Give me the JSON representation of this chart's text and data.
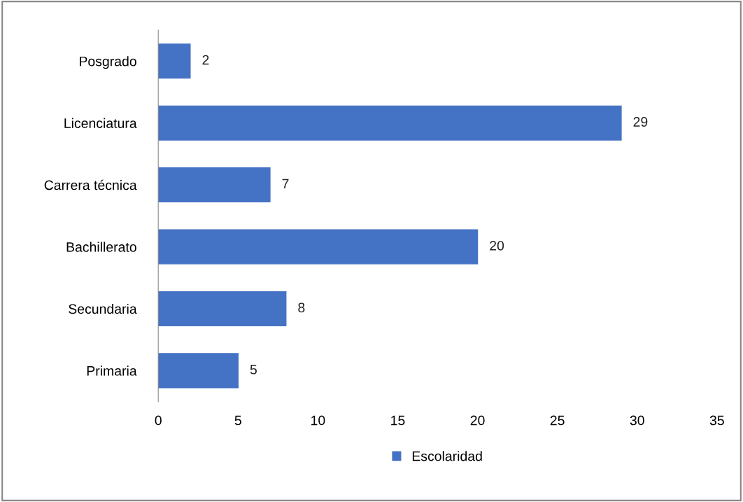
{
  "chart_data": {
    "type": "bar",
    "orientation": "horizontal",
    "categories": [
      "Posgrado",
      "Licenciatura",
      "Carrera técnica",
      "Bachillerato",
      "Secundaria",
      "Primaria"
    ],
    "series": [
      {
        "name": "Escolaridad",
        "color": "#4472c4",
        "values": [
          2,
          29,
          7,
          20,
          8,
          5
        ]
      }
    ],
    "xlim": [
      0,
      35
    ],
    "xticks": [
      0,
      5,
      10,
      15,
      20,
      25,
      30,
      35
    ],
    "grid": false,
    "legend": "bottom",
    "data_labels": true
  }
}
